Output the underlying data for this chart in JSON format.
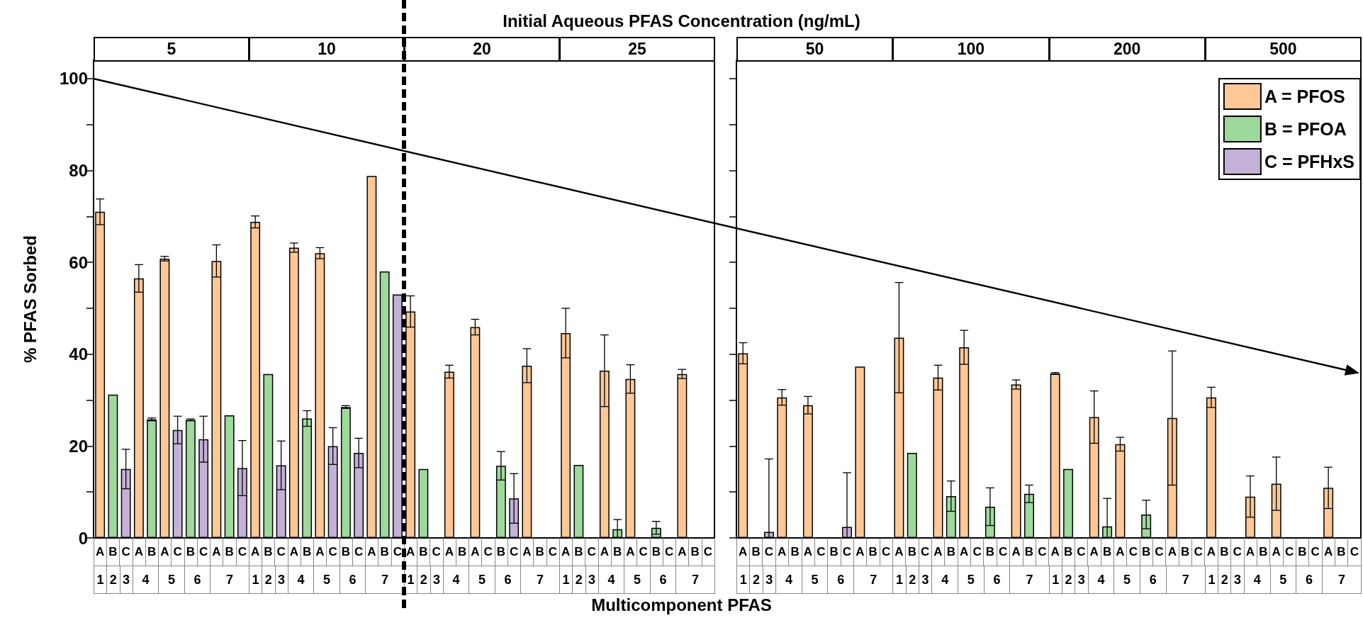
{
  "chart_data": [
    {
      "type": "bar",
      "title": "Initial Aqueous PFAS Concentration (ng/mL)",
      "xlabel": "Multicomponent PFAS",
      "ylabel": "% PFAS Sorbed",
      "categories": [
        "A",
        "B",
        "C",
        "A",
        "B",
        "A",
        "C",
        "B",
        "C",
        "A",
        "B",
        "C",
        "A",
        "B",
        "C",
        "A",
        "B",
        "A",
        "C",
        "B",
        "C",
        "A",
        "B",
        "C",
        "A",
        "B",
        "C",
        "A",
        "B",
        "A",
        "C",
        "B",
        "C",
        "A",
        "B",
        "C",
        "A",
        "B",
        "C",
        "A",
        "B",
        "A",
        "C",
        "B",
        "C",
        "A",
        "B",
        "C"
      ],
      "series": [
        {
          "color": "#fdc896",
          "values": [
            71,
            null,
            null,
            56.5,
            null,
            60.8,
            null,
            null,
            null,
            60.3,
            null,
            null,
            68.8,
            null,
            null,
            63.2,
            null,
            62,
            null,
            null,
            null,
            78.8,
            null,
            null,
            49.3,
            null,
            null,
            36.2,
            null,
            45.9,
            null,
            null,
            null,
            37.5,
            null,
            null,
            44.6,
            null,
            null,
            36.4,
            null,
            34.6,
            null,
            null,
            null,
            35.7,
            null,
            null
          ],
          "errors": [
            2.8,
            null,
            null,
            3,
            null,
            0.5,
            null,
            null,
            null,
            3.5,
            null,
            null,
            1.3,
            null,
            null,
            1,
            null,
            1.2,
            null,
            null,
            null,
            null,
            null,
            null,
            3.4,
            null,
            null,
            1.4,
            null,
            1.7,
            null,
            null,
            null,
            3.7,
            null,
            null,
            5.4,
            null,
            null,
            7.8,
            null,
            3.1,
            null,
            null,
            null,
            1,
            null,
            null
          ]
        },
        {
          "color": "#9ed99c",
          "values": [
            null,
            31.2,
            null,
            null,
            25.8,
            null,
            null,
            25.7,
            null,
            null,
            26.7,
            null,
            null,
            35.7,
            null,
            null,
            26,
            null,
            null,
            28.5,
            null,
            null,
            58,
            null,
            null,
            15,
            null,
            null,
            null,
            null,
            null,
            15.7,
            null,
            null,
            null,
            null,
            null,
            15.9,
            null,
            null,
            1.9,
            null,
            null,
            2.2,
            null,
            null,
            null,
            null
          ],
          "errors": [
            null,
            null,
            null,
            null,
            0.3,
            null,
            null,
            0.2,
            null,
            null,
            null,
            null,
            null,
            null,
            null,
            null,
            1.7,
            null,
            null,
            0.3,
            null,
            null,
            null,
            null,
            null,
            null,
            null,
            null,
            null,
            null,
            null,
            3.1,
            null,
            null,
            null,
            null,
            null,
            null,
            null,
            null,
            [
              0,
              4
            ],
            null,
            null,
            1.4,
            null,
            null,
            null,
            null
          ]
        },
        {
          "color": "#c3b1d8",
          "values": [
            null,
            null,
            15,
            null,
            null,
            null,
            23.5,
            null,
            21.5,
            null,
            null,
            15.2,
            null,
            null,
            15.8,
            null,
            null,
            null,
            20,
            null,
            18.5,
            null,
            null,
            53,
            null,
            null,
            null,
            null,
            null,
            null,
            null,
            null,
            8.6,
            null,
            null,
            null,
            null,
            null,
            null,
            null,
            null,
            null,
            null,
            null,
            null,
            null,
            null,
            null
          ],
          "errors": [
            null,
            null,
            4.3,
            null,
            null,
            null,
            3,
            null,
            5,
            null,
            null,
            6,
            null,
            null,
            5.3,
            null,
            null,
            null,
            4,
            null,
            3.2,
            null,
            null,
            null,
            null,
            null,
            null,
            null,
            null,
            null,
            null,
            null,
            5.4,
            null,
            null,
            null,
            null,
            null,
            null,
            null,
            null,
            null,
            null,
            null,
            null,
            null,
            null,
            null
          ]
        }
      ],
      "ylim": [
        0,
        104
      ],
      "yticks": [
        0,
        {
          "value": 10,
          "label": null
        },
        20,
        {
          "value": 30,
          "label": null
        },
        40,
        {
          "value": 50,
          "label": null
        },
        60,
        {
          "value": 70,
          "label": null
        },
        80,
        {
          "value": 90,
          "label": null
        },
        100
      ],
      "annotations": [
        "5",
        "10",
        "20",
        "25",
        "1",
        "2",
        "3",
        "4",
        "5",
        "6",
        "7",
        "1",
        "2",
        "3",
        "4",
        "5",
        "6",
        "7",
        "1",
        "2",
        "3",
        "4",
        "5",
        "6",
        "7",
        "1",
        "2",
        "3",
        "4",
        "5",
        "6",
        "7"
      ]
    },
    {
      "type": "bar",
      "categories": [
        "A",
        "B",
        "C",
        "A",
        "B",
        "A",
        "C",
        "B",
        "C",
        "A",
        "B",
        "C",
        "A",
        "B",
        "C",
        "A",
        "B",
        "A",
        "C",
        "B",
        "C",
        "A",
        "B",
        "C",
        "A",
        "B",
        "C",
        "A",
        "B",
        "A",
        "C",
        "B",
        "C",
        "A",
        "B",
        "C",
        "A",
        "B",
        "C",
        "A",
        "B",
        "A",
        "C",
        "B",
        "C",
        "A",
        "B",
        "C"
      ],
      "series": [
        {
          "name": "A = PFOS",
          "color": "#fdc896",
          "values": [
            40.2,
            null,
            null,
            30.6,
            null,
            28.9,
            null,
            null,
            null,
            37.3,
            null,
            null,
            43.6,
            null,
            null,
            34.9,
            null,
            41.5,
            null,
            null,
            null,
            33.4,
            null,
            null,
            35.8,
            null,
            null,
            26.3,
            null,
            20.4,
            null,
            null,
            null,
            26.1,
            null,
            null,
            30.6,
            null,
            null,
            9,
            null,
            11.8,
            null,
            null,
            null,
            10.9,
            null,
            null
          ],
          "errors": [
            2.3,
            null,
            null,
            1.7,
            null,
            1.9,
            null,
            null,
            null,
            null,
            null,
            null,
            12,
            null,
            null,
            2.7,
            null,
            3.7,
            null,
            null,
            null,
            1,
            null,
            null,
            0.2,
            null,
            null,
            5.7,
            null,
            1.5,
            null,
            null,
            null,
            14.6,
            null,
            null,
            2.2,
            null,
            null,
            4.5,
            null,
            5.8,
            null,
            null,
            null,
            4.5,
            null,
            null
          ]
        },
        {
          "name": "B = PFOA",
          "color": "#9ed99c",
          "values": [
            null,
            null,
            null,
            null,
            null,
            null,
            null,
            null,
            null,
            null,
            null,
            null,
            null,
            18.5,
            null,
            null,
            9.1,
            null,
            null,
            6.8,
            null,
            null,
            9.6,
            null,
            null,
            15,
            null,
            null,
            2.5,
            null,
            null,
            5.1,
            null,
            null,
            null,
            null,
            null,
            null,
            null,
            null,
            null,
            null,
            null,
            null,
            null,
            null,
            null,
            null
          ],
          "errors": [
            null,
            null,
            null,
            null,
            null,
            null,
            null,
            null,
            null,
            null,
            null,
            null,
            null,
            null,
            null,
            null,
            3.3,
            null,
            null,
            4.1,
            null,
            null,
            1.9,
            null,
            null,
            null,
            null,
            null,
            [
              0,
              8.6
            ],
            null,
            null,
            3.1,
            null,
            null,
            null,
            null,
            null,
            null,
            null,
            null,
            null,
            null,
            null,
            null,
            null,
            null,
            null,
            null
          ]
        },
        {
          "name": "C = PFHxS",
          "color": "#c3b1d8",
          "values": [
            null,
            null,
            1.3,
            null,
            null,
            null,
            null,
            null,
            2.4,
            null,
            null,
            null,
            null,
            null,
            null,
            null,
            null,
            null,
            null,
            null,
            null,
            null,
            null,
            null,
            null,
            null,
            null,
            null,
            null,
            null,
            null,
            null,
            null,
            null,
            null,
            null,
            null,
            null,
            null,
            null,
            null,
            null,
            null,
            null,
            null,
            null,
            null,
            null
          ],
          "errors": [
            null,
            null,
            [
              0,
              17.2
            ],
            null,
            null,
            null,
            null,
            null,
            [
              0,
              14.2
            ],
            null,
            null,
            null,
            null,
            null,
            null,
            null,
            null,
            null,
            null,
            null,
            null,
            null,
            null,
            null,
            null,
            null,
            null,
            null,
            null,
            null,
            null,
            null,
            null,
            null,
            null,
            null,
            null,
            null,
            null,
            null,
            null,
            null,
            null,
            null,
            null,
            null,
            null,
            null
          ]
        }
      ],
      "ylim": [
        0,
        104
      ],
      "yticks": [
        0,
        {
          "value": 10,
          "label": null
        },
        20,
        {
          "value": 30,
          "label": null
        },
        40,
        {
          "value": 50,
          "label": null
        },
        60,
        {
          "value": 70,
          "label": null
        },
        80,
        {
          "value": 90,
          "label": null
        },
        100
      ],
      "tick_labels": "x",
      "legend": "top right",
      "annotations": [
        "50",
        "100",
        "200",
        "500",
        "1",
        "2",
        "3",
        "4",
        "5",
        "6",
        "7",
        "1",
        "2",
        "3",
        "4",
        "5",
        "6",
        "7",
        "1",
        "2",
        "3",
        "4",
        "5",
        "6",
        "7",
        "1",
        "2",
        "3",
        "4",
        "5",
        "6",
        "7"
      ]
    }
  ]
}
